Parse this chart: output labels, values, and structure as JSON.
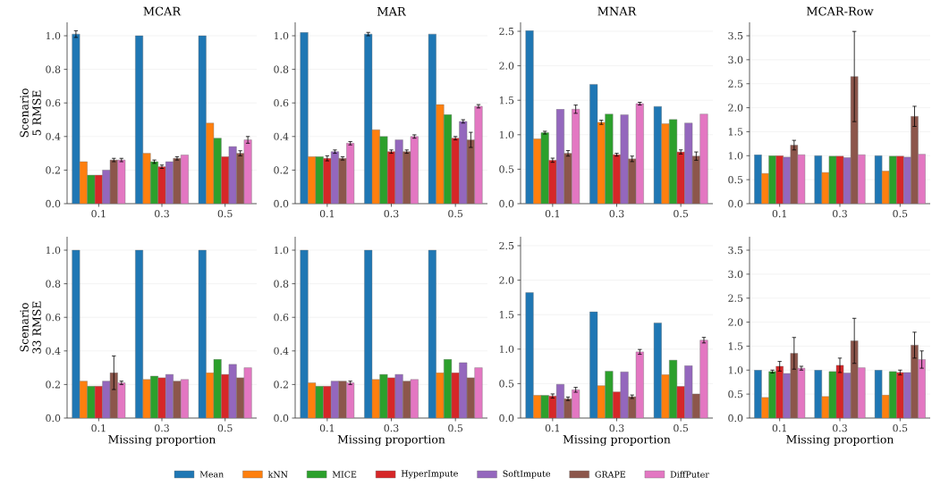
{
  "chart_data": [
    {
      "type": "bar",
      "title": "MCAR",
      "ylabel": "Scenario 5 RMSE",
      "categories": [
        "0.1",
        "0.3",
        "0.5"
      ],
      "ylim": [
        0,
        1.08
      ],
      "yticks": [
        {
          "value": 0,
          "label": "0.0"
        },
        {
          "value": 0.2,
          "label": "0.2"
        },
        {
          "value": 0.4,
          "label": "0.4"
        },
        {
          "value": 0.6,
          "label": "0.6"
        },
        {
          "value": 0.8,
          "label": "0.8"
        },
        {
          "value": 1.0,
          "label": "1.0"
        }
      ],
      "grid": "y",
      "legend": "bottom",
      "series": [
        {
          "name": "Mean",
          "color": "#1f77b4",
          "values": [
            1.01,
            1.0,
            1.0
          ],
          "errors": [
            0.02,
            null,
            null
          ]
        },
        {
          "name": "kNN",
          "color": "#ff7f0e",
          "values": [
            0.25,
            0.3,
            0.48
          ],
          "errors": [
            null,
            null,
            null
          ]
        },
        {
          "name": "MICE",
          "color": "#2ca02c",
          "values": [
            0.17,
            0.25,
            0.39
          ],
          "errors": [
            null,
            0.01,
            null
          ]
        },
        {
          "name": "HyperImpute",
          "color": "#d62728",
          "values": [
            0.17,
            0.22,
            0.28
          ],
          "errors": [
            null,
            0.01,
            null
          ]
        },
        {
          "name": "SoftImpute",
          "color": "#9467bd",
          "values": [
            0.2,
            0.25,
            0.34
          ],
          "errors": [
            null,
            null,
            null
          ]
        },
        {
          "name": "GRAPE",
          "color": "#8c564b",
          "values": [
            0.26,
            0.27,
            0.3
          ],
          "errors": [
            0.01,
            0.01,
            0.015
          ]
        },
        {
          "name": "DiffPuter",
          "color": "#e377c2",
          "values": [
            0.26,
            0.29,
            0.38
          ],
          "errors": [
            0.01,
            null,
            0.02
          ]
        }
      ]
    },
    {
      "type": "bar",
      "title": "MAR",
      "categories": [
        "0.1",
        "0.3",
        "0.5"
      ],
      "ylim": [
        0,
        1.08
      ],
      "yticks": [
        {
          "value": 0,
          "label": "0.0"
        },
        {
          "value": 0.2,
          "label": "0.2"
        },
        {
          "value": 0.4,
          "label": "0.4"
        },
        {
          "value": 0.6,
          "label": "0.6"
        },
        {
          "value": 0.8,
          "label": "0.8"
        },
        {
          "value": 1.0,
          "label": "1.0"
        }
      ],
      "grid": "y",
      "series": [
        {
          "color": "#1f77b4",
          "values": [
            1.02,
            1.01,
            1.01
          ],
          "errors": [
            null,
            0.01,
            null
          ]
        },
        {
          "color": "#ff7f0e",
          "values": [
            0.28,
            0.44,
            0.59
          ],
          "errors": [
            null,
            null,
            null
          ]
        },
        {
          "color": "#2ca02c",
          "values": [
            0.28,
            0.4,
            0.53
          ],
          "errors": [
            null,
            null,
            null
          ]
        },
        {
          "color": "#d62728",
          "values": [
            0.27,
            0.31,
            0.39
          ],
          "errors": [
            0.015,
            0.01,
            0.01
          ]
        },
        {
          "color": "#9467bd",
          "values": [
            0.31,
            0.38,
            0.49
          ],
          "errors": [
            0.01,
            null,
            0.01
          ]
        },
        {
          "color": "#8c564b",
          "values": [
            0.27,
            0.31,
            0.38
          ],
          "errors": [
            0.01,
            0.01,
            0.045
          ]
        },
        {
          "color": "#e377c2",
          "values": [
            0.36,
            0.4,
            0.58
          ],
          "errors": [
            0.01,
            0.01,
            0.01
          ]
        }
      ]
    },
    {
      "type": "bar",
      "title": "MNAR",
      "categories": [
        "0.1",
        "0.3",
        "0.5"
      ],
      "ylim": [
        0,
        2.63
      ],
      "yticks": [
        {
          "value": 0,
          "label": "0.0"
        },
        {
          "value": 0.5,
          "label": "0.5"
        },
        {
          "value": 1.0,
          "label": "1.0"
        },
        {
          "value": 1.5,
          "label": "1.5"
        },
        {
          "value": 2.0,
          "label": "2.0"
        },
        {
          "value": 2.5,
          "label": "2.5"
        }
      ],
      "grid": "y",
      "series": [
        {
          "color": "#1f77b4",
          "values": [
            2.51,
            1.73,
            1.41
          ],
          "errors": [
            null,
            null,
            null
          ]
        },
        {
          "color": "#ff7f0e",
          "values": [
            0.94,
            1.18,
            1.16
          ],
          "errors": [
            null,
            0.03,
            null
          ]
        },
        {
          "color": "#2ca02c",
          "values": [
            1.03,
            1.3,
            1.22
          ],
          "errors": [
            0.02,
            null,
            null
          ]
        },
        {
          "color": "#d62728",
          "values": [
            0.63,
            0.71,
            0.75
          ],
          "errors": [
            0.03,
            0.02,
            0.03
          ]
        },
        {
          "color": "#9467bd",
          "values": [
            1.37,
            1.29,
            1.17
          ],
          "errors": [
            null,
            null,
            null
          ]
        },
        {
          "color": "#8c564b",
          "values": [
            0.73,
            0.65,
            0.69
          ],
          "errors": [
            0.04,
            0.04,
            0.06
          ]
        },
        {
          "color": "#e377c2",
          "values": [
            1.37,
            1.45,
            1.3
          ],
          "errors": [
            0.06,
            0.02,
            null
          ]
        }
      ]
    },
    {
      "type": "bar",
      "title": "MCAR-Row",
      "categories": [
        "0.1",
        "0.3",
        "0.5"
      ],
      "ylim": [
        0,
        3.78
      ],
      "yticks": [
        {
          "value": 0,
          "label": "0.0"
        },
        {
          "value": 0.5,
          "label": "0.5"
        },
        {
          "value": 1.0,
          "label": "1.0"
        },
        {
          "value": 1.5,
          "label": "1.5"
        },
        {
          "value": 2.0,
          "label": "2.0"
        },
        {
          "value": 2.5,
          "label": "2.5"
        },
        {
          "value": 3.0,
          "label": "3.0"
        },
        {
          "value": 3.5,
          "label": "3.5"
        }
      ],
      "grid": "y",
      "series": [
        {
          "color": "#1f77b4",
          "values": [
            1.02,
            1.0,
            1.0
          ],
          "errors": [
            null,
            null,
            null
          ]
        },
        {
          "color": "#ff7f0e",
          "values": [
            0.63,
            0.65,
            0.68
          ],
          "errors": [
            null,
            null,
            null
          ]
        },
        {
          "color": "#2ca02c",
          "values": [
            1.0,
            0.99,
            0.99
          ],
          "errors": [
            null,
            null,
            null
          ]
        },
        {
          "color": "#d62728",
          "values": [
            1.0,
            0.99,
            0.99
          ],
          "errors": [
            null,
            null,
            null
          ]
        },
        {
          "color": "#9467bd",
          "values": [
            0.97,
            0.96,
            0.97
          ],
          "errors": [
            null,
            null,
            null
          ]
        },
        {
          "color": "#8c564b",
          "values": [
            1.22,
            2.65,
            1.82
          ],
          "errors": [
            0.1,
            0.94,
            0.21
          ]
        },
        {
          "color": "#e377c2",
          "values": [
            1.02,
            1.02,
            1.03
          ],
          "errors": [
            null,
            null,
            null
          ]
        }
      ]
    },
    {
      "type": "bar",
      "xlabel": "Missing proportion",
      "ylabel": "Scenario 33 RMSE",
      "categories": [
        "0.1",
        "0.3",
        "0.5"
      ],
      "ylim": [
        0,
        1.08
      ],
      "yticks": [
        {
          "value": 0,
          "label": "0.0"
        },
        {
          "value": 0.2,
          "label": "0.2"
        },
        {
          "value": 0.4,
          "label": "0.4"
        },
        {
          "value": 0.6,
          "label": "0.6"
        },
        {
          "value": 0.8,
          "label": "0.8"
        },
        {
          "value": 1.0,
          "label": "1.0"
        }
      ],
      "grid": "y",
      "series": [
        {
          "color": "#1f77b4",
          "values": [
            1.0,
            1.0,
            1.0
          ],
          "errors": [
            null,
            null,
            null
          ]
        },
        {
          "color": "#ff7f0e",
          "values": [
            0.22,
            0.23,
            0.27
          ],
          "errors": [
            null,
            null,
            null
          ]
        },
        {
          "color": "#2ca02c",
          "values": [
            0.19,
            0.25,
            0.35
          ],
          "errors": [
            null,
            null,
            null
          ]
        },
        {
          "color": "#d62728",
          "values": [
            0.19,
            0.24,
            0.26
          ],
          "errors": [
            null,
            null,
            null
          ]
        },
        {
          "color": "#9467bd",
          "values": [
            0.22,
            0.26,
            0.32
          ],
          "errors": [
            null,
            null,
            null
          ]
        },
        {
          "color": "#8c564b",
          "values": [
            0.27,
            0.22,
            0.24
          ],
          "errors": [
            0.1,
            null,
            null
          ]
        },
        {
          "color": "#e377c2",
          "values": [
            0.21,
            0.23,
            0.3
          ],
          "errors": [
            0.01,
            null,
            null
          ]
        }
      ]
    },
    {
      "type": "bar",
      "xlabel": "Missing proportion",
      "categories": [
        "0.1",
        "0.3",
        "0.5"
      ],
      "ylim": [
        0,
        1.08
      ],
      "yticks": [
        {
          "value": 0,
          "label": "0.0"
        },
        {
          "value": 0.2,
          "label": "0.2"
        },
        {
          "value": 0.4,
          "label": "0.4"
        },
        {
          "value": 0.6,
          "label": "0.6"
        },
        {
          "value": 0.8,
          "label": "0.8"
        },
        {
          "value": 1.0,
          "label": "1.0"
        }
      ],
      "grid": "y",
      "series": [
        {
          "color": "#1f77b4",
          "values": [
            1.0,
            1.0,
            1.0
          ],
          "errors": [
            null,
            null,
            null
          ]
        },
        {
          "color": "#ff7f0e",
          "values": [
            0.21,
            0.23,
            0.27
          ],
          "errors": [
            null,
            null,
            null
          ]
        },
        {
          "color": "#2ca02c",
          "values": [
            0.19,
            0.26,
            0.35
          ],
          "errors": [
            null,
            null,
            null
          ]
        },
        {
          "color": "#d62728",
          "values": [
            0.19,
            0.24,
            0.27
          ],
          "errors": [
            null,
            null,
            null
          ]
        },
        {
          "color": "#9467bd",
          "values": [
            0.22,
            0.26,
            0.33
          ],
          "errors": [
            null,
            null,
            null
          ]
        },
        {
          "color": "#8c564b",
          "values": [
            0.22,
            0.22,
            0.24
          ],
          "errors": [
            null,
            null,
            null
          ]
        },
        {
          "color": "#e377c2",
          "values": [
            0.21,
            0.23,
            0.3
          ],
          "errors": [
            0.01,
            null,
            null
          ]
        }
      ]
    },
    {
      "type": "bar",
      "xlabel": "Missing proportion",
      "categories": [
        "0.1",
        "0.3",
        "0.5"
      ],
      "ylim": [
        0,
        2.63
      ],
      "yticks": [
        {
          "value": 0,
          "label": "0.0"
        },
        {
          "value": 0.5,
          "label": "0.5"
        },
        {
          "value": 1.0,
          "label": "1.0"
        },
        {
          "value": 1.5,
          "label": "1.5"
        },
        {
          "value": 2.0,
          "label": "2.0"
        },
        {
          "value": 2.5,
          "label": "2.5"
        }
      ],
      "grid": "y",
      "series": [
        {
          "color": "#1f77b4",
          "values": [
            1.82,
            1.54,
            1.38
          ],
          "errors": [
            null,
            null,
            null
          ]
        },
        {
          "color": "#ff7f0e",
          "values": [
            0.33,
            0.47,
            0.63
          ],
          "errors": [
            null,
            null,
            null
          ]
        },
        {
          "color": "#2ca02c",
          "values": [
            0.33,
            0.68,
            0.84
          ],
          "errors": [
            null,
            null,
            null
          ]
        },
        {
          "color": "#d62728",
          "values": [
            0.32,
            0.38,
            0.46
          ],
          "errors": [
            0.03,
            null,
            null
          ]
        },
        {
          "color": "#9467bd",
          "values": [
            0.49,
            0.67,
            0.76
          ],
          "errors": [
            null,
            null,
            null
          ]
        },
        {
          "color": "#8c564b",
          "values": [
            0.28,
            0.31,
            0.35
          ],
          "errors": [
            0.025,
            0.025,
            null
          ]
        },
        {
          "color": "#e377c2",
          "values": [
            0.41,
            0.96,
            1.13
          ],
          "errors": [
            0.035,
            0.035,
            0.04
          ]
        }
      ]
    },
    {
      "type": "bar",
      "xlabel": "Missing proportion",
      "categories": [
        "0.1",
        "0.3",
        "0.5"
      ],
      "ylim": [
        0,
        3.78
      ],
      "yticks": [
        {
          "value": 0,
          "label": "0.0"
        },
        {
          "value": 0.5,
          "label": "0.5"
        },
        {
          "value": 1.0,
          "label": "1.0"
        },
        {
          "value": 1.5,
          "label": "1.5"
        },
        {
          "value": 2.0,
          "label": "2.0"
        },
        {
          "value": 2.5,
          "label": "2.5"
        },
        {
          "value": 3.0,
          "label": "3.0"
        },
        {
          "value": 3.5,
          "label": "3.5"
        }
      ],
      "grid": "y",
      "series": [
        {
          "color": "#1f77b4",
          "values": [
            1.0,
            1.0,
            1.0
          ],
          "errors": [
            null,
            null,
            null
          ]
        },
        {
          "color": "#ff7f0e",
          "values": [
            0.43,
            0.45,
            0.48
          ],
          "errors": [
            null,
            null,
            null
          ]
        },
        {
          "color": "#2ca02c",
          "values": [
            0.97,
            0.97,
            0.97
          ],
          "errors": [
            0.03,
            null,
            null
          ]
        },
        {
          "color": "#d62728",
          "values": [
            1.08,
            1.1,
            0.95
          ],
          "errors": [
            0.1,
            0.15,
            0.05
          ]
        },
        {
          "color": "#9467bd",
          "values": [
            0.93,
            0.94,
            0.95
          ],
          "errors": [
            null,
            null,
            null
          ]
        },
        {
          "color": "#8c564b",
          "values": [
            1.35,
            1.61,
            1.52
          ],
          "errors": [
            0.33,
            0.47,
            0.27
          ]
        },
        {
          "color": "#e377c2",
          "values": [
            1.04,
            1.05,
            1.22
          ],
          "errors": [
            0.04,
            null,
            0.18
          ]
        }
      ]
    }
  ]
}
